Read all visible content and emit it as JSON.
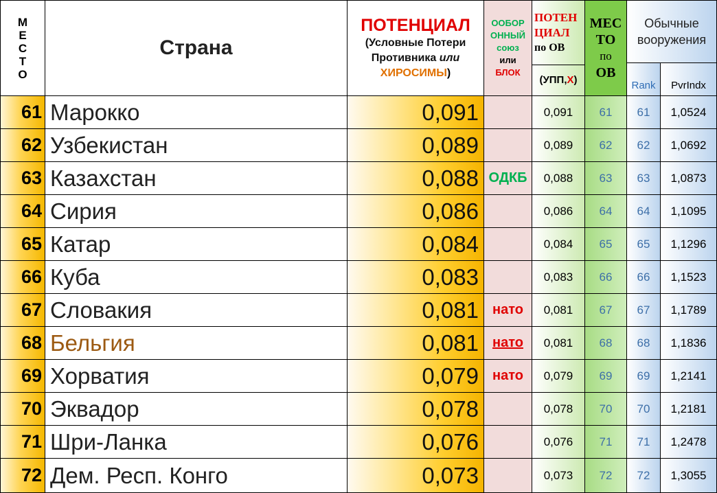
{
  "header": {
    "place_letters": [
      "М",
      "Е",
      "С",
      "Т",
      "О"
    ],
    "country": "Страна",
    "potential_title": "ПОТЕНЦИАЛ",
    "potential_sub1": "(Условные Потери",
    "potential_sub2_a": "Противника ",
    "potential_sub2_b": "или",
    "potential_sub3_a": "ХИРОСИМЫ",
    "potential_sub3_b": ")",
    "bloc_line1": "ООБОР",
    "bloc_line2": "ОННЫЙ",
    "bloc_line3": "союз",
    "bloc_line4": "или",
    "bloc_line5": "БЛОК",
    "ov_line1": "ПОТЕН",
    "ov_line2": "ЦИАЛ",
    "ov_line3": "по ОВ",
    "ov_unit_a": "(УПП,",
    "ov_unit_x": "Х",
    "ov_unit_b": ")",
    "mesto_line1": "МЕС",
    "mesto_line2": "ТО",
    "mesto_line3": "по",
    "mesto_line4": "ОВ",
    "conv_line1": "Обычные",
    "conv_line2": "вооружения",
    "rank": "Rank",
    "pvr": "PvrIndx"
  },
  "colors": {
    "bloc_green": "#00b050",
    "bloc_red": "#e00000",
    "country_highlight": "#9c5a12"
  },
  "rows": [
    {
      "place": "61",
      "country": "Марокко",
      "potential": "0,091",
      "bloc": "",
      "ov": "0,091",
      "mesto": "61",
      "rank": "61",
      "pvr": "1,0524"
    },
    {
      "place": "62",
      "country": "Узбекистан",
      "potential": "0,089",
      "bloc": "",
      "ov": "0,089",
      "mesto": "62",
      "rank": "62",
      "pvr": "1,0692"
    },
    {
      "place": "63",
      "country": "Казахстан",
      "potential": "0,088",
      "bloc": "ОДКБ",
      "bloc_color": "green",
      "ov": "0,088",
      "mesto": "63",
      "rank": "63",
      "pvr": "1,0873"
    },
    {
      "place": "64",
      "country": "Сирия",
      "potential": "0,086",
      "bloc": "",
      "ov": "0,086",
      "mesto": "64",
      "rank": "64",
      "pvr": "1,1095"
    },
    {
      "place": "65",
      "country": "Катар",
      "potential": "0,084",
      "bloc": "",
      "ov": "0,084",
      "mesto": "65",
      "rank": "65",
      "pvr": "1,1296"
    },
    {
      "place": "66",
      "country": "Куба",
      "potential": "0,083",
      "bloc": "",
      "ov": "0,083",
      "mesto": "66",
      "rank": "66",
      "pvr": "1,1523"
    },
    {
      "place": "67",
      "country": "Словакия",
      "potential": "0,081",
      "bloc": "нато",
      "bloc_color": "red",
      "ov": "0,081",
      "mesto": "67",
      "rank": "67",
      "pvr": "1,1789"
    },
    {
      "place": "68",
      "country": "Бельгия",
      "highlight": true,
      "potential": "0,081",
      "bloc": "нато",
      "bloc_color": "red",
      "bloc_underline": true,
      "ov": "0,081",
      "mesto": "68",
      "rank": "68",
      "pvr": "1,1836"
    },
    {
      "place": "69",
      "country": "Хорватия",
      "potential": "0,079",
      "bloc": "нато",
      "bloc_color": "red",
      "ov": "0,079",
      "mesto": "69",
      "rank": "69",
      "pvr": "1,2141"
    },
    {
      "place": "70",
      "country": "Эквадор",
      "potential": "0,078",
      "bloc": "",
      "ov": "0,078",
      "mesto": "70",
      "rank": "70",
      "pvr": "1,2181"
    },
    {
      "place": "71",
      "country": "Шри-Ланка",
      "potential": "0,076",
      "bloc": "",
      "ov": "0,076",
      "mesto": "71",
      "rank": "71",
      "pvr": "1,2478"
    },
    {
      "place": "72",
      "country": "Дем. Респ. Конго",
      "potential": "0,073",
      "bloc": "",
      "ov": "0,073",
      "mesto": "72",
      "rank": "72",
      "pvr": "1,3055"
    }
  ]
}
